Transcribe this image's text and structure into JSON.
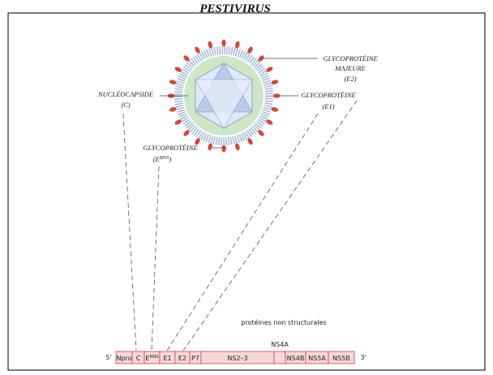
{
  "title": "PESTIVIRUS",
  "labels": {
    "nucleocapsid": {
      "name": "NUCLÉOCAPSIDE",
      "code": "(C)"
    },
    "erns": {
      "name": "GLYCOPROTÉINE",
      "open": "(E",
      "sup": "RNS",
      "close": ")"
    },
    "e2": {
      "name": "GLYCOPROTÉINE",
      "qualifier": "MAJEURE",
      "code": "(E2)"
    },
    "e1": {
      "name": "GLYCOPROTÉINE",
      "code": "(E1)"
    }
  },
  "genome": {
    "five_prime": "5'",
    "three_prime": "3'",
    "nonstructural": "protéines non structurales",
    "ns4a": "NS4A",
    "segments": {
      "npro": "Npro",
      "c": "C",
      "erns": {
        "base": "E",
        "sup": "RNS"
      },
      "e1": "E1",
      "e2": "E2",
      "p7": "P7",
      "ns23": "NS2–3",
      "ns4b": "NS4B",
      "ns5a": "NS5A",
      "ns5b": "NS5B"
    }
  }
}
